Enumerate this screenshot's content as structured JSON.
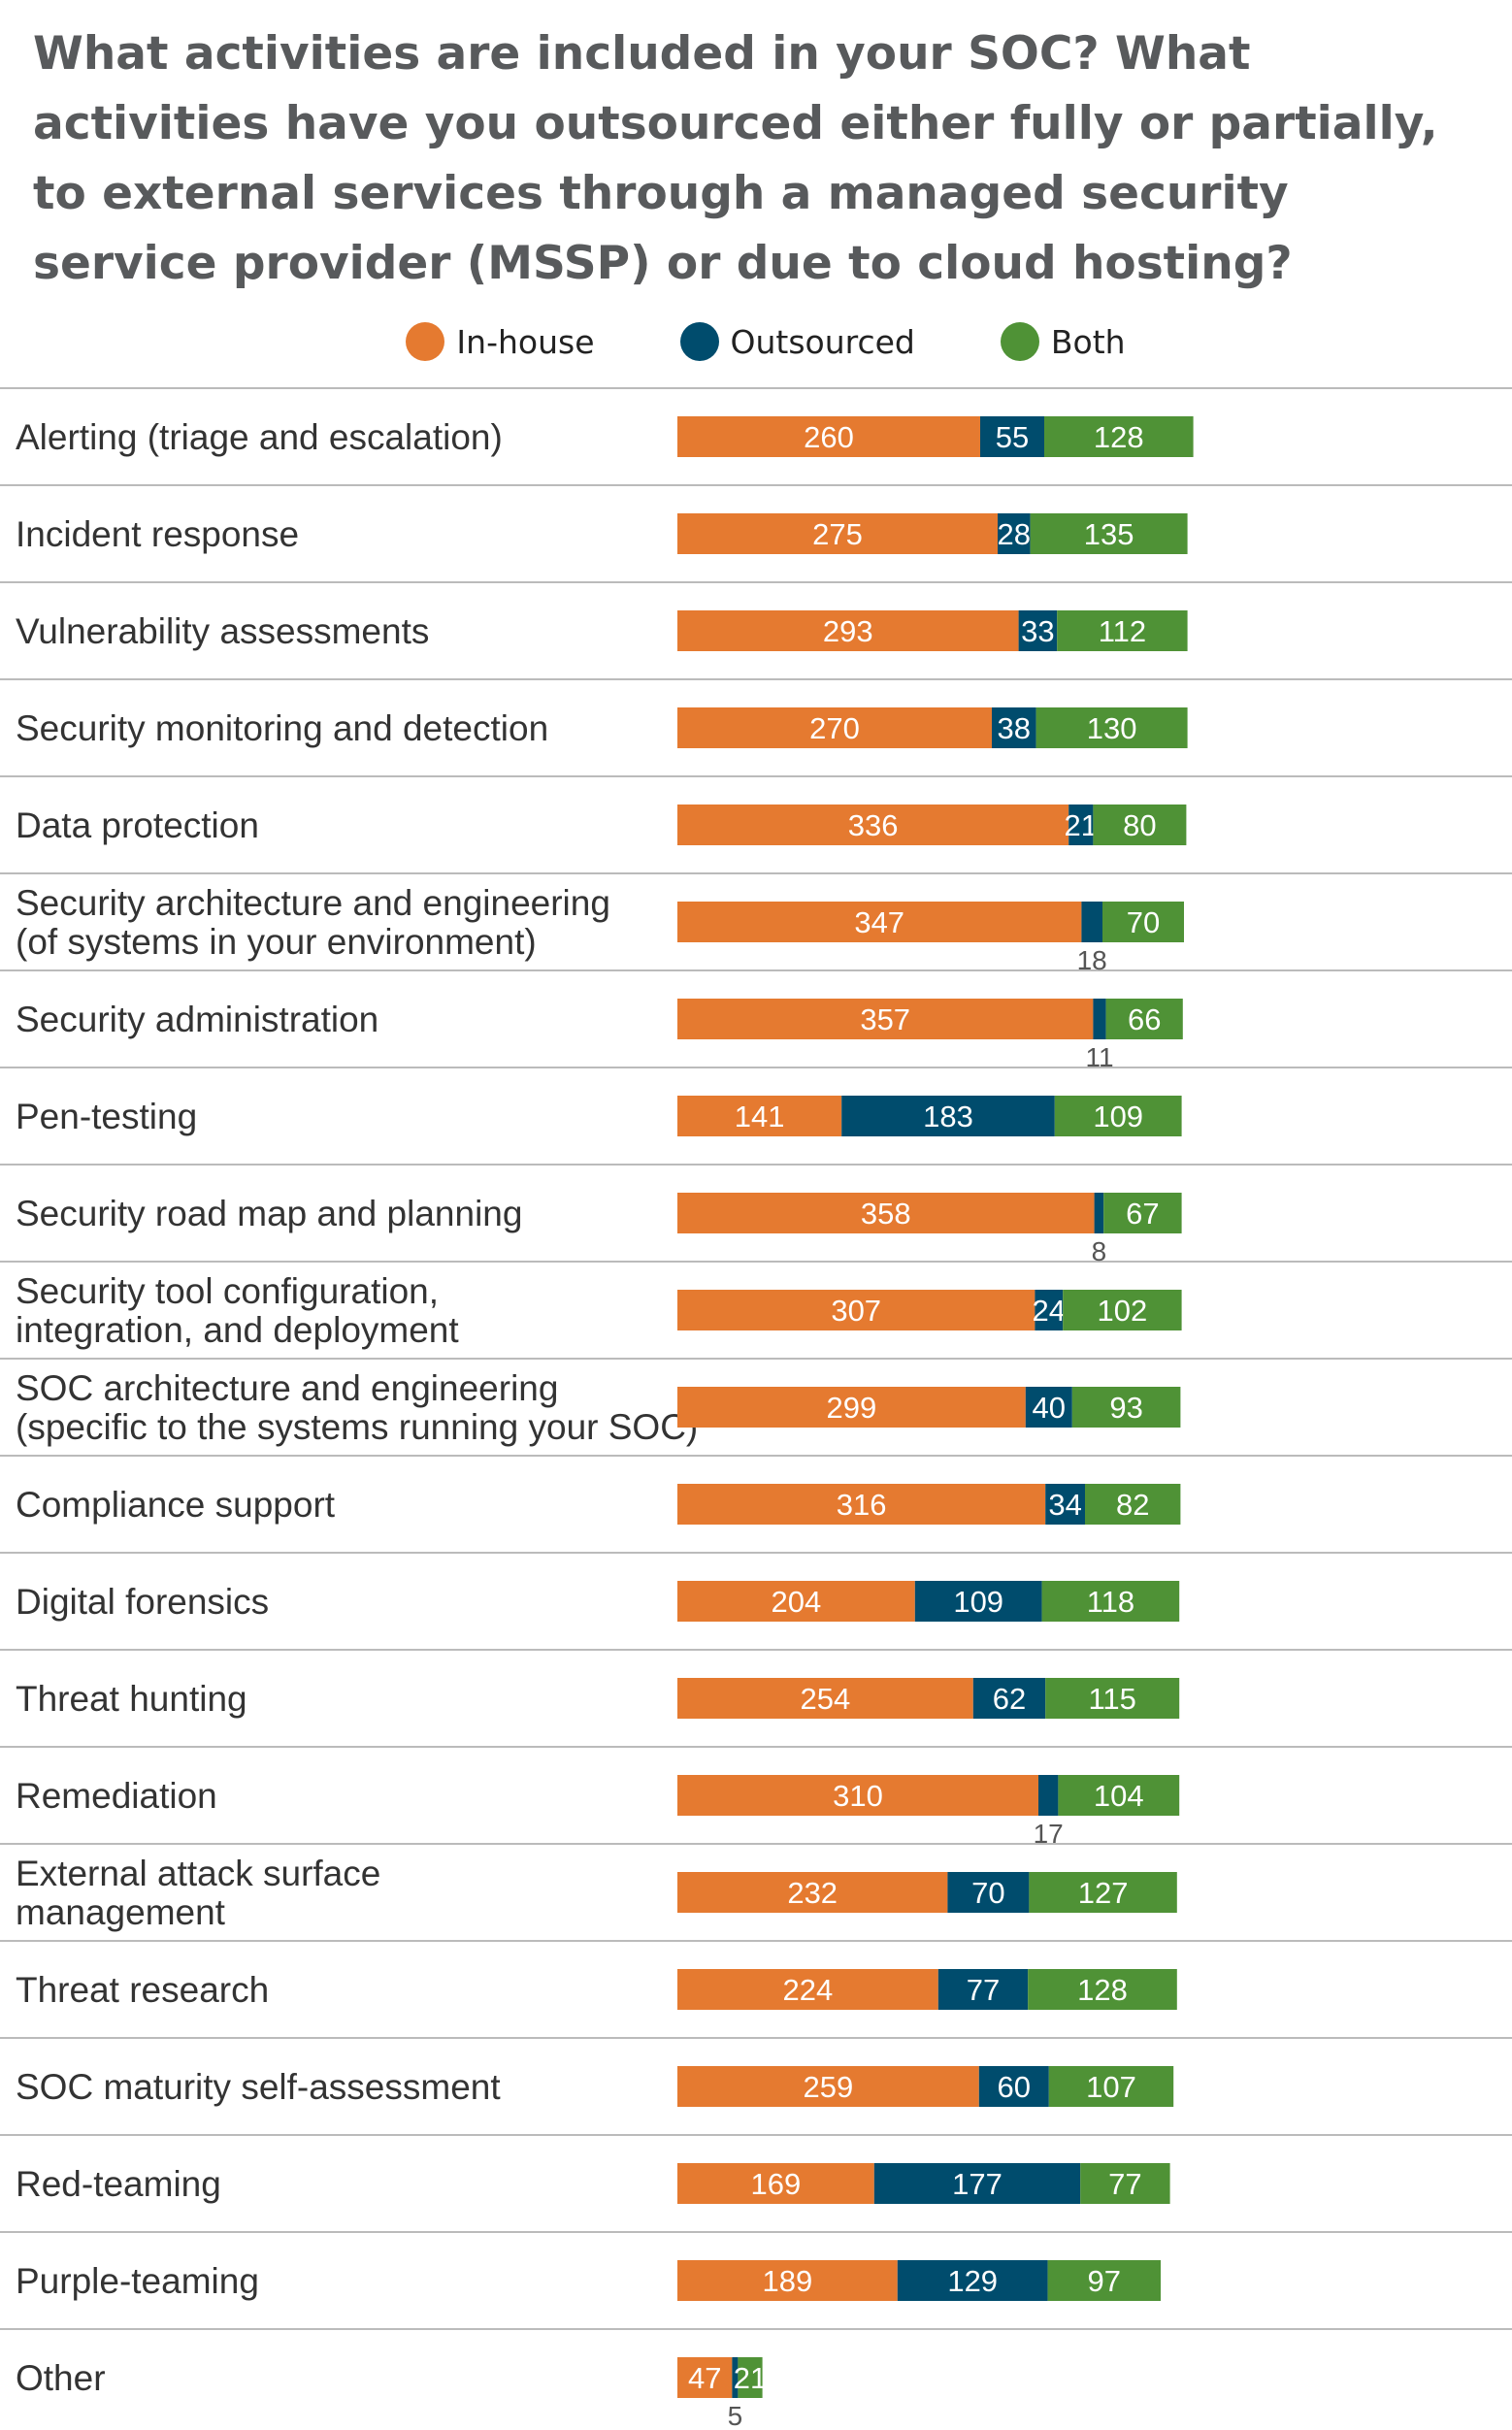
{
  "chart_data": {
    "type": "bar",
    "orientation": "horizontal",
    "stacked": true,
    "title": "What activities are included in your SOC? What activities have you outsourced either fully or partially, to external services through a managed security service provider (MSSP) or due to cloud hosting?",
    "legend_position": "top-center",
    "grid": false,
    "categories": [
      "Alerting (triage and escalation)",
      "Incident response",
      "Vulnerability assessments",
      "Security monitoring and detection",
      "Data protection",
      "Security architecture and engineering\n(of systems in your environment)",
      "Security administration",
      "Pen-testing",
      "Security road map and planning",
      "Security tool configuration,\nintegration, and deployment",
      "SOC architecture and engineering\n(specific to the systems running your SOC)",
      "Compliance support",
      "Digital forensics",
      "Threat hunting",
      "Remediation",
      "External attack surface\nmanagement",
      "Threat research",
      "SOC maturity self-assessment",
      "Red-teaming",
      "Purple-teaming",
      "Other"
    ],
    "series": [
      {
        "name": "In-house",
        "color": "#e57a30",
        "values": [
          260,
          275,
          293,
          270,
          336,
          347,
          357,
          141,
          358,
          307,
          299,
          316,
          204,
          254,
          310,
          232,
          224,
          259,
          169,
          189,
          47
        ]
      },
      {
        "name": "Outsourced",
        "color": "#004c6d",
        "values": [
          55,
          28,
          33,
          38,
          21,
          18,
          11,
          183,
          8,
          24,
          40,
          34,
          109,
          62,
          17,
          70,
          77,
          60,
          177,
          129,
          5
        ]
      },
      {
        "name": "Both",
        "color": "#4f9236",
        "values": [
          128,
          135,
          112,
          130,
          80,
          70,
          66,
          109,
          67,
          102,
          93,
          82,
          118,
          115,
          104,
          127,
          128,
          107,
          77,
          97,
          21
        ]
      }
    ]
  },
  "colors": {
    "title": "#585a5c",
    "row_label": "#333333",
    "divider": "#bbbbbb"
  }
}
